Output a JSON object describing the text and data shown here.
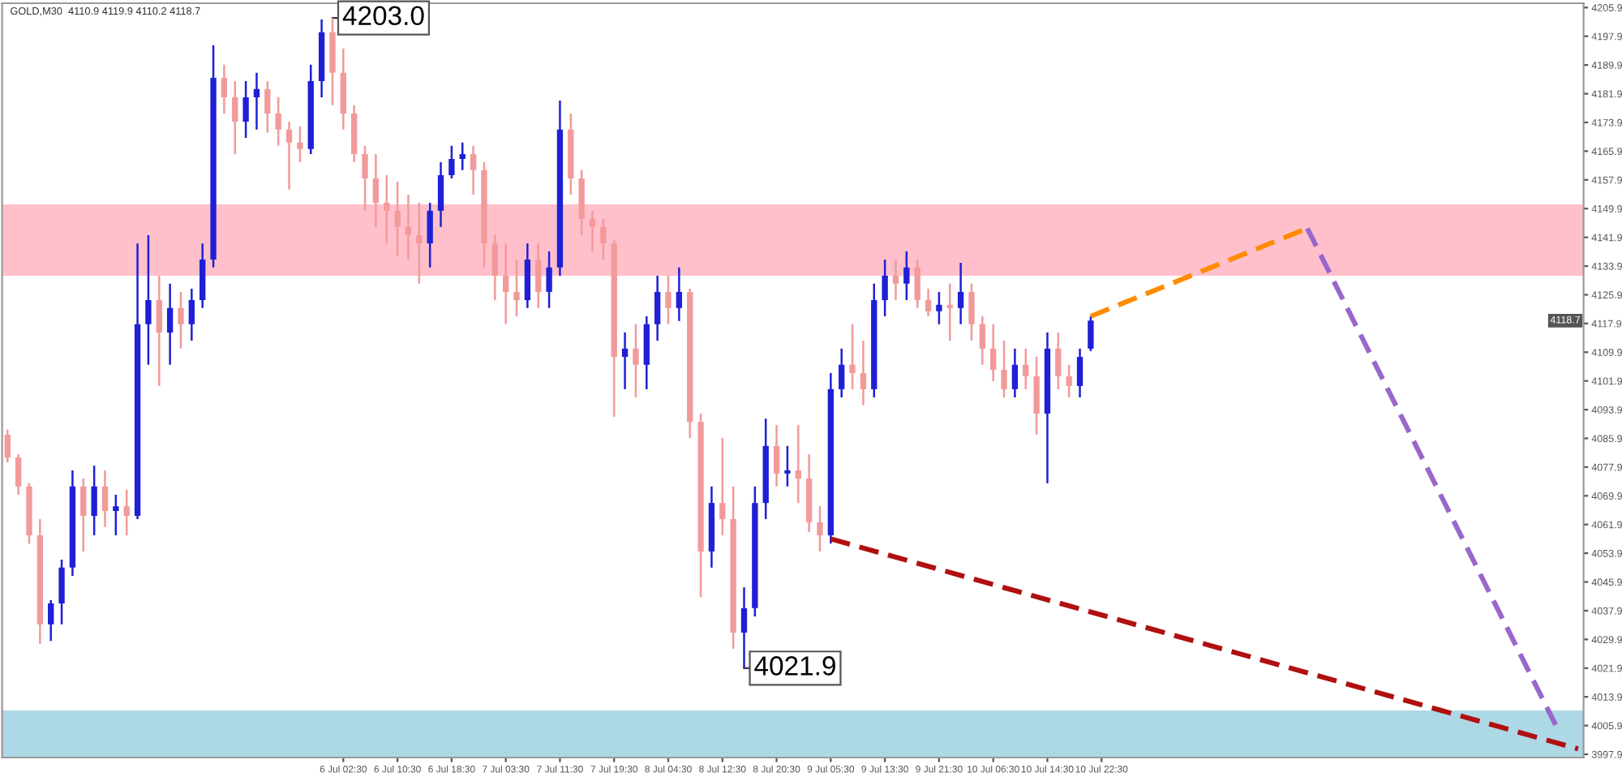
{
  "chart_data": {
    "type": "candlestick",
    "title": "GOLD,M30  4110.9 4119.9 4110.2 4118.7",
    "categories": [
      null,
      null,
      null,
      null,
      null,
      null,
      null,
      null,
      null,
      null,
      null,
      null,
      null,
      null,
      null,
      null,
      null,
      null,
      null,
      null,
      null,
      null,
      null,
      null,
      null,
      null,
      null,
      null,
      null,
      null,
      null,
      "6 Jul 02:30",
      null,
      null,
      null,
      null,
      "6 Jul 10:30",
      null,
      null,
      null,
      null,
      "6 Jul 18:30",
      null,
      null,
      null,
      null,
      "7 Jul 03:30",
      null,
      null,
      null,
      null,
      "7 Jul 11:30",
      null,
      null,
      null,
      null,
      "7 Jul 19:30",
      null,
      null,
      null,
      null,
      "8 Jul 04:30",
      null,
      null,
      null,
      null,
      "8 Jul 12:30",
      null,
      null,
      null,
      null,
      "8 Jul 20:30",
      null,
      null,
      null,
      null,
      "9 Jul 05:30",
      null,
      null,
      null,
      null,
      "9 Jul 13:30",
      null,
      null,
      null,
      null,
      "9 Jul 21:30",
      null,
      null,
      null,
      null,
      "10 Jul 06:30",
      null,
      null,
      null,
      null,
      "10 Jul 14:30",
      null,
      null,
      null,
      null,
      "10 Jul 22:30",
      null,
      null,
      null,
      null,
      null,
      null,
      null,
      null,
      null,
      null,
      null,
      null,
      null,
      null,
      null,
      null,
      null,
      null,
      null,
      null,
      null,
      null,
      null,
      null,
      null,
      null,
      null,
      null,
      null,
      null,
      null,
      null,
      null,
      null,
      null,
      null,
      null,
      null,
      null,
      null,
      null,
      null,
      null,
      null
    ],
    "colors": [
      "#f29a9a",
      "#f29a9a",
      "#f29a9a",
      "#f29a9a",
      "#1f1fd6",
      "#1f1fd6",
      "#1f1fd6",
      "#f29a9a",
      "#1f1fd6",
      "#f29a9a",
      "#1f1fd6",
      "#f29a9a",
      "#1f1fd6",
      "#1f1fd6",
      "#f29a9a",
      "#1f1fd6",
      "#f29a9a",
      "#1f1fd6",
      "#1f1fd6",
      "#1f1fd6",
      "#f29a9a",
      "#f29a9a",
      "#1f1fd6",
      "#1f1fd6",
      "#f29a9a",
      "#f29a9a",
      "#f29a9a",
      "#f29a9a",
      "#1f1fd6",
      "#1f1fd6",
      "#f29a9a",
      "#f29a9a",
      "#f29a9a",
      "#f29a9a",
      "#f29a9a",
      "#f29a9a",
      "#f29a9a",
      "#f29a9a",
      "#f29a9a",
      "#1f1fd6",
      "#1f1fd6",
      "#1f1fd6",
      "#1f1fd6",
      "#f29a9a",
      "#f29a9a",
      "#f29a9a",
      "#f29a9a",
      "#f29a9a",
      "#1f1fd6",
      "#f29a9a",
      "#1f1fd6",
      "#1f1fd6",
      "#f29a9a",
      "#f29a9a",
      "#f29a9a",
      "#f29a9a",
      "#f29a9a",
      "#1f1fd6",
      "#f29a9a",
      "#1f1fd6",
      "#1f1fd6",
      "#f29a9a",
      "#1f1fd6",
      "#f29a9a",
      "#f29a9a",
      "#1f1fd6",
      "#f29a9a",
      "#f29a9a",
      "#1f1fd6",
      "#1f1fd6",
      "#1f1fd6",
      "#f29a9a",
      "#1f1fd6",
      "#f29a9a",
      "#f29a9a",
      "#f29a9a",
      "#1f1fd6",
      "#1f1fd6",
      "#f29a9a",
      "#f29a9a",
      "#1f1fd6",
      "#1f1fd6",
      "#f29a9a",
      "#1f1fd6",
      "#f29a9a",
      "#f29a9a",
      "#1f1fd6",
      "#f29a9a",
      "#1f1fd6",
      "#f29a9a",
      "#f29a9a",
      "#f29a9a",
      "#f29a9a",
      "#1f1fd6",
      "#f29a9a",
      "#f29a9a",
      "#1f1fd6",
      "#f29a9a",
      "#f29a9a",
      "#1f1fd6",
      "#1f1fd6",
      null,
      null,
      null,
      null,
      null,
      null,
      null,
      null,
      null,
      null,
      null,
      null,
      null,
      null,
      null,
      null,
      null,
      null,
      null,
      null,
      null,
      null,
      null,
      null,
      null,
      null,
      null,
      null,
      null,
      null,
      null,
      null,
      null,
      null,
      null,
      null,
      null,
      null,
      null,
      null,
      null,
      null,
      null,
      null,
      null
    ],
    "ohlc": [
      [
        4086.9,
        4088.3,
        4079.2,
        4080.6
      ],
      [
        4080.6,
        4081.5,
        4070.2,
        4072.5
      ],
      [
        4072.5,
        4073.4,
        4056.6,
        4058.9
      ],
      [
        4058.9,
        4063.4,
        4028.6,
        4034.1
      ],
      [
        4034.1,
        4040.8,
        4029.5,
        4039.9
      ],
      [
        4039.9,
        4052.1,
        4034.1,
        4049.9
      ],
      [
        4049.9,
        4077.0,
        4047.6,
        4072.5
      ],
      [
        4072.5,
        4074.7,
        4054.4,
        4064.3
      ],
      [
        4064.3,
        4078.3,
        4058.9,
        4072.5
      ],
      [
        4072.5,
        4077.0,
        4061.2,
        4065.7
      ],
      [
        4065.7,
        4070.2,
        4058.9,
        4067.0
      ],
      [
        4067.0,
        4071.6,
        4058.9,
        4064.3
      ],
      [
        4064.3,
        4140.2,
        4063.4,
        4117.7
      ],
      [
        4117.7,
        4142.5,
        4106.4,
        4124.4
      ],
      [
        4124.4,
        4131.2,
        4100.5,
        4115.4
      ],
      [
        4115.4,
        4129.0,
        4106.4,
        4122.2
      ],
      [
        4122.2,
        4126.7,
        4110.9,
        4117.7
      ],
      [
        4117.7,
        4127.6,
        4113.1,
        4124.4
      ],
      [
        4124.4,
        4140.2,
        4122.2,
        4135.7
      ],
      [
        4135.7,
        4195.4,
        4133.5,
        4186.3
      ],
      [
        4186.3,
        4190.0,
        4176.4,
        4180.9
      ],
      [
        4180.9,
        4185.4,
        4165.1,
        4174.1
      ],
      [
        4174.1,
        4185.4,
        4169.6,
        4180.9
      ],
      [
        4180.9,
        4187.7,
        4171.9,
        4183.2
      ],
      [
        4183.2,
        4185.4,
        4171.0,
        4176.4
      ],
      [
        4176.4,
        4180.9,
        4167.4,
        4171.9
      ],
      [
        4171.9,
        4174.1,
        4155.2,
        4168.3
      ],
      [
        4168.3,
        4172.8,
        4162.8,
        4166.5
      ],
      [
        4166.5,
        4190.0,
        4165.1,
        4185.4
      ],
      [
        4185.4,
        4202.6,
        4180.9,
        4199.0
      ],
      [
        4199.0,
        4203.0,
        4178.7,
        4187.7
      ],
      [
        4187.7,
        4194.5,
        4171.9,
        4176.4
      ],
      [
        4176.4,
        4178.7,
        4162.8,
        4165.1
      ],
      [
        4165.1,
        4167.4,
        4149.3,
        4158.3
      ],
      [
        4158.3,
        4165.1,
        4144.8,
        4151.5
      ],
      [
        4151.5,
        4159.2,
        4140.2,
        4149.3
      ],
      [
        4149.3,
        4157.4,
        4136.6,
        4144.8
      ],
      [
        4144.8,
        4153.8,
        4135.7,
        4142.5
      ],
      [
        4142.5,
        4151.5,
        4129.0,
        4140.2
      ],
      [
        4140.2,
        4151.5,
        4133.5,
        4149.3
      ],
      [
        4149.3,
        4162.8,
        4144.8,
        4159.2
      ],
      [
        4159.2,
        4167.4,
        4158.3,
        4163.7
      ],
      [
        4163.7,
        4168.3,
        4160.6,
        4165.1
      ],
      [
        4165.1,
        4167.4,
        4153.8,
        4160.6
      ],
      [
        4160.6,
        4162.8,
        4133.5,
        4140.2
      ],
      [
        4140.2,
        4142.5,
        4124.4,
        4131.2
      ],
      [
        4131.2,
        4140.2,
        4117.7,
        4126.7
      ],
      [
        4126.7,
        4135.7,
        4119.9,
        4124.4
      ],
      [
        4124.4,
        4140.2,
        4122.2,
        4135.7
      ],
      [
        4135.7,
        4140.2,
        4122.2,
        4126.7
      ],
      [
        4126.7,
        4138.0,
        4122.2,
        4133.5
      ],
      [
        4133.5,
        4180.0,
        4131.2,
        4171.9
      ],
      [
        4171.9,
        4176.4,
        4153.8,
        4158.3
      ],
      [
        4158.3,
        4160.6,
        4142.5,
        4147.0
      ],
      [
        4147.0,
        4149.3,
        4138.0,
        4144.8
      ],
      [
        4144.8,
        4147.0,
        4135.7,
        4140.2
      ],
      [
        4140.2,
        4141.2,
        4091.9,
        4108.6
      ],
      [
        4108.6,
        4115.4,
        4099.6,
        4110.9
      ],
      [
        4110.9,
        4117.7,
        4097.3,
        4106.4
      ],
      [
        4106.4,
        4119.9,
        4099.6,
        4117.7
      ],
      [
        4117.7,
        4131.2,
        4113.1,
        4126.7
      ],
      [
        4126.7,
        4131.2,
        4117.7,
        4122.2
      ],
      [
        4122.2,
        4133.5,
        4118.6,
        4126.7
      ],
      [
        4126.7,
        4127.6,
        4086.0,
        4090.5
      ],
      [
        4090.5,
        4092.8,
        4041.7,
        4054.4
      ],
      [
        4054.4,
        4072.5,
        4049.9,
        4067.9
      ],
      [
        4067.9,
        4086.0,
        4058.9,
        4063.4
      ],
      [
        4063.4,
        4072.5,
        4027.3,
        4031.8
      ],
      [
        4031.8,
        4044.4,
        4021.9,
        4038.6
      ],
      [
        4038.6,
        4072.5,
        4036.3,
        4067.9
      ],
      [
        4067.9,
        4091.4,
        4063.4,
        4083.8
      ],
      [
        4083.8,
        4089.6,
        4072.5,
        4076.1
      ],
      [
        4076.1,
        4083.8,
        4072.5,
        4077.0
      ],
      [
        4077.0,
        4089.6,
        4067.9,
        4074.7
      ],
      [
        4074.7,
        4081.5,
        4059.8,
        4062.5
      ],
      [
        4062.5,
        4067.0,
        4054.4,
        4058.9
      ],
      [
        4058.9,
        4104.1,
        4056.6,
        4099.6
      ],
      [
        4099.6,
        4110.9,
        4097.3,
        4106.4
      ],
      [
        4106.4,
        4117.7,
        4099.6,
        4104.1
      ],
      [
        4104.1,
        4113.1,
        4095.1,
        4099.6
      ],
      [
        4099.6,
        4129.0,
        4097.3,
        4124.4
      ],
      [
        4124.4,
        4135.7,
        4119.9,
        4131.2
      ],
      [
        4131.2,
        4135.7,
        4124.4,
        4129.0
      ],
      [
        4129.0,
        4138.0,
        4124.4,
        4133.5
      ],
      [
        4133.5,
        4135.7,
        4122.2,
        4124.4
      ],
      [
        4124.4,
        4127.6,
        4119.9,
        4121.3
      ],
      [
        4121.3,
        4126.7,
        4117.7,
        4123.1
      ],
      [
        4123.1,
        4129.0,
        4113.1,
        4122.2
      ],
      [
        4122.2,
        4134.8,
        4117.7,
        4126.7
      ],
      [
        4126.7,
        4129.0,
        4113.1,
        4117.7
      ],
      [
        4117.7,
        4119.9,
        4106.4,
        4110.9
      ],
      [
        4110.9,
        4117.7,
        4101.8,
        4105.0
      ],
      [
        4105.0,
        4113.1,
        4097.3,
        4099.6
      ],
      [
        4099.6,
        4110.9,
        4097.3,
        4106.4
      ],
      [
        4106.4,
        4110.9,
        4099.6,
        4103.2
      ],
      [
        4103.2,
        4108.6,
        4086.9,
        4092.8
      ],
      [
        4092.8,
        4115.4,
        4073.4,
        4110.9
      ],
      [
        4110.9,
        4115.4,
        4099.6,
        4103.2
      ],
      [
        4103.2,
        4106.4,
        4097.3,
        4100.5
      ],
      [
        4100.5,
        4110.9,
        4097.3,
        4108.6
      ],
      [
        4110.9,
        4119.9,
        4110.2,
        4118.7
      ],
      null,
      null,
      null,
      null,
      null,
      null,
      null,
      null,
      null,
      null,
      null,
      null,
      null,
      null,
      null,
      null,
      null,
      null,
      null,
      null,
      null,
      null,
      null,
      null,
      null,
      null,
      null,
      null,
      null,
      null,
      null,
      null,
      null,
      null,
      null,
      null,
      null,
      null,
      null,
      null,
      null,
      null,
      null,
      null,
      null
    ],
    "series": [
      {
        "type": "line",
        "color": "#ff8c00",
        "line_style": "dashed",
        "values": [
          null,
          null,
          null,
          null,
          null,
          null,
          null,
          null,
          null,
          null,
          null,
          null,
          null,
          null,
          null,
          null,
          null,
          null,
          null,
          null,
          null,
          null,
          null,
          null,
          null,
          null,
          null,
          null,
          null,
          null,
          null,
          null,
          null,
          null,
          null,
          null,
          null,
          null,
          null,
          null,
          null,
          null,
          null,
          null,
          null,
          null,
          null,
          null,
          null,
          null,
          null,
          null,
          null,
          null,
          null,
          null,
          null,
          null,
          null,
          null,
          null,
          null,
          null,
          null,
          null,
          null,
          null,
          null,
          null,
          null,
          null,
          null,
          null,
          null,
          null,
          null,
          null,
          null,
          null,
          null,
          null,
          null,
          null,
          null,
          null,
          null,
          null,
          null,
          null,
          null,
          null,
          null,
          null,
          null,
          null,
          null,
          null,
          null,
          null,
          null,
          4119.9,
          null,
          null,
          null,
          null,
          null,
          null,
          null,
          null,
          null,
          null,
          null,
          null,
          null,
          null,
          null,
          null,
          null,
          null,
          null,
          4144.4,
          null,
          null,
          null,
          null,
          null,
          null,
          null,
          null,
          null,
          null,
          null,
          null,
          null,
          null,
          null,
          null,
          null,
          null,
          null,
          null,
          null,
          null,
          null,
          null,
          null
        ]
      },
      {
        "type": "line",
        "color": "#9966cc",
        "line_style": "dashed",
        "values": [
          null,
          null,
          null,
          null,
          null,
          null,
          null,
          null,
          null,
          null,
          null,
          null,
          null,
          null,
          null,
          null,
          null,
          null,
          null,
          null,
          null,
          null,
          null,
          null,
          null,
          null,
          null,
          null,
          null,
          null,
          null,
          null,
          null,
          null,
          null,
          null,
          null,
          null,
          null,
          null,
          null,
          null,
          null,
          null,
          null,
          null,
          null,
          null,
          null,
          null,
          null,
          null,
          null,
          null,
          null,
          null,
          null,
          null,
          null,
          null,
          null,
          null,
          null,
          null,
          null,
          null,
          null,
          null,
          null,
          null,
          null,
          null,
          null,
          null,
          null,
          null,
          null,
          null,
          null,
          null,
          null,
          null,
          null,
          null,
          null,
          null,
          null,
          null,
          null,
          null,
          null,
          null,
          null,
          null,
          null,
          null,
          null,
          null,
          null,
          null,
          null,
          null,
          null,
          null,
          null,
          null,
          null,
          null,
          null,
          null,
          null,
          null,
          null,
          null,
          null,
          null,
          null,
          null,
          null,
          null,
          4144.4,
          null,
          null,
          null,
          null,
          null,
          null,
          null,
          null,
          null,
          null,
          null,
          null,
          null,
          null,
          null,
          null,
          null,
          null,
          null,
          null,
          null,
          null,
          4005.6,
          null,
          null
        ]
      },
      {
        "type": "line",
        "color": "#b01010",
        "line_style": "dashed",
        "values": [
          null,
          null,
          null,
          null,
          null,
          null,
          null,
          null,
          null,
          null,
          null,
          null,
          null,
          null,
          null,
          null,
          null,
          null,
          null,
          null,
          null,
          null,
          null,
          null,
          null,
          null,
          null,
          null,
          null,
          null,
          null,
          null,
          null,
          null,
          null,
          null,
          null,
          null,
          null,
          null,
          null,
          null,
          null,
          null,
          null,
          null,
          null,
          null,
          null,
          null,
          null,
          null,
          null,
          null,
          null,
          null,
          null,
          null,
          null,
          null,
          null,
          null,
          null,
          null,
          null,
          null,
          null,
          null,
          null,
          null,
          null,
          null,
          null,
          null,
          null,
          null,
          4057.9,
          null,
          null,
          null,
          null,
          null,
          null,
          null,
          null,
          null,
          null,
          null,
          null,
          null,
          null,
          null,
          null,
          null,
          null,
          null,
          null,
          null,
          null,
          null,
          null,
          null,
          null,
          null,
          null,
          null,
          null,
          null,
          null,
          null,
          null,
          null,
          null,
          null,
          null,
          null,
          null,
          null,
          null,
          null,
          null,
          null,
          null,
          null,
          null,
          null,
          null,
          null,
          null,
          null,
          null,
          null,
          null,
          null,
          null,
          null,
          null,
          null,
          null,
          null,
          null,
          null,
          null,
          null,
          null,
          3999.4
        ]
      }
    ],
    "bands": [
      {
        "axis": "y",
        "from": 4131.2,
        "to": 4151.1,
        "color": "#ffc0cb"
      },
      {
        "axis": "y",
        "from": 3997.0,
        "to": 4010.1,
        "color": "#add8e6"
      }
    ],
    "annotations": [
      "4203.0",
      "4021.9",
      "4118.7"
    ],
    "ylim": [
      3997.0,
      4207.1
    ],
    "yticks": [
      3997.9,
      4005.9,
      4013.9,
      4021.9,
      4029.9,
      4037.9,
      4045.9,
      4053.9,
      4061.9,
      4069.9,
      4077.9,
      4085.9,
      4093.9,
      4101.9,
      4109.9,
      4117.9,
      4125.9,
      4133.9,
      4141.9,
      4149.9,
      4157.9,
      4165.9,
      4173.9,
      4181.9,
      4189.9,
      4197.9,
      4205.9
    ],
    "grid": false,
    "legend": false
  }
}
